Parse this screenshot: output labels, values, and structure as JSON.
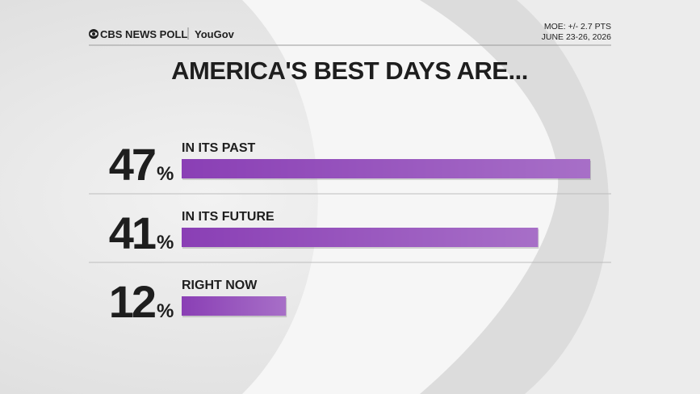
{
  "header": {
    "brand": "CBS NEWS POLL",
    "partner": "YouGov",
    "moe": "MOE: +/- 2.7 PTS",
    "dates": "JUNE 23-26, 2026"
  },
  "chart_data": {
    "type": "bar",
    "title": "AMERICA'S BEST DAYS ARE...",
    "categories": [
      "IN ITS PAST",
      "IN ITS FUTURE",
      "RIGHT NOW"
    ],
    "values": [
      47,
      41,
      12
    ],
    "unit": "%",
    "color": "#8a3fb5"
  }
}
